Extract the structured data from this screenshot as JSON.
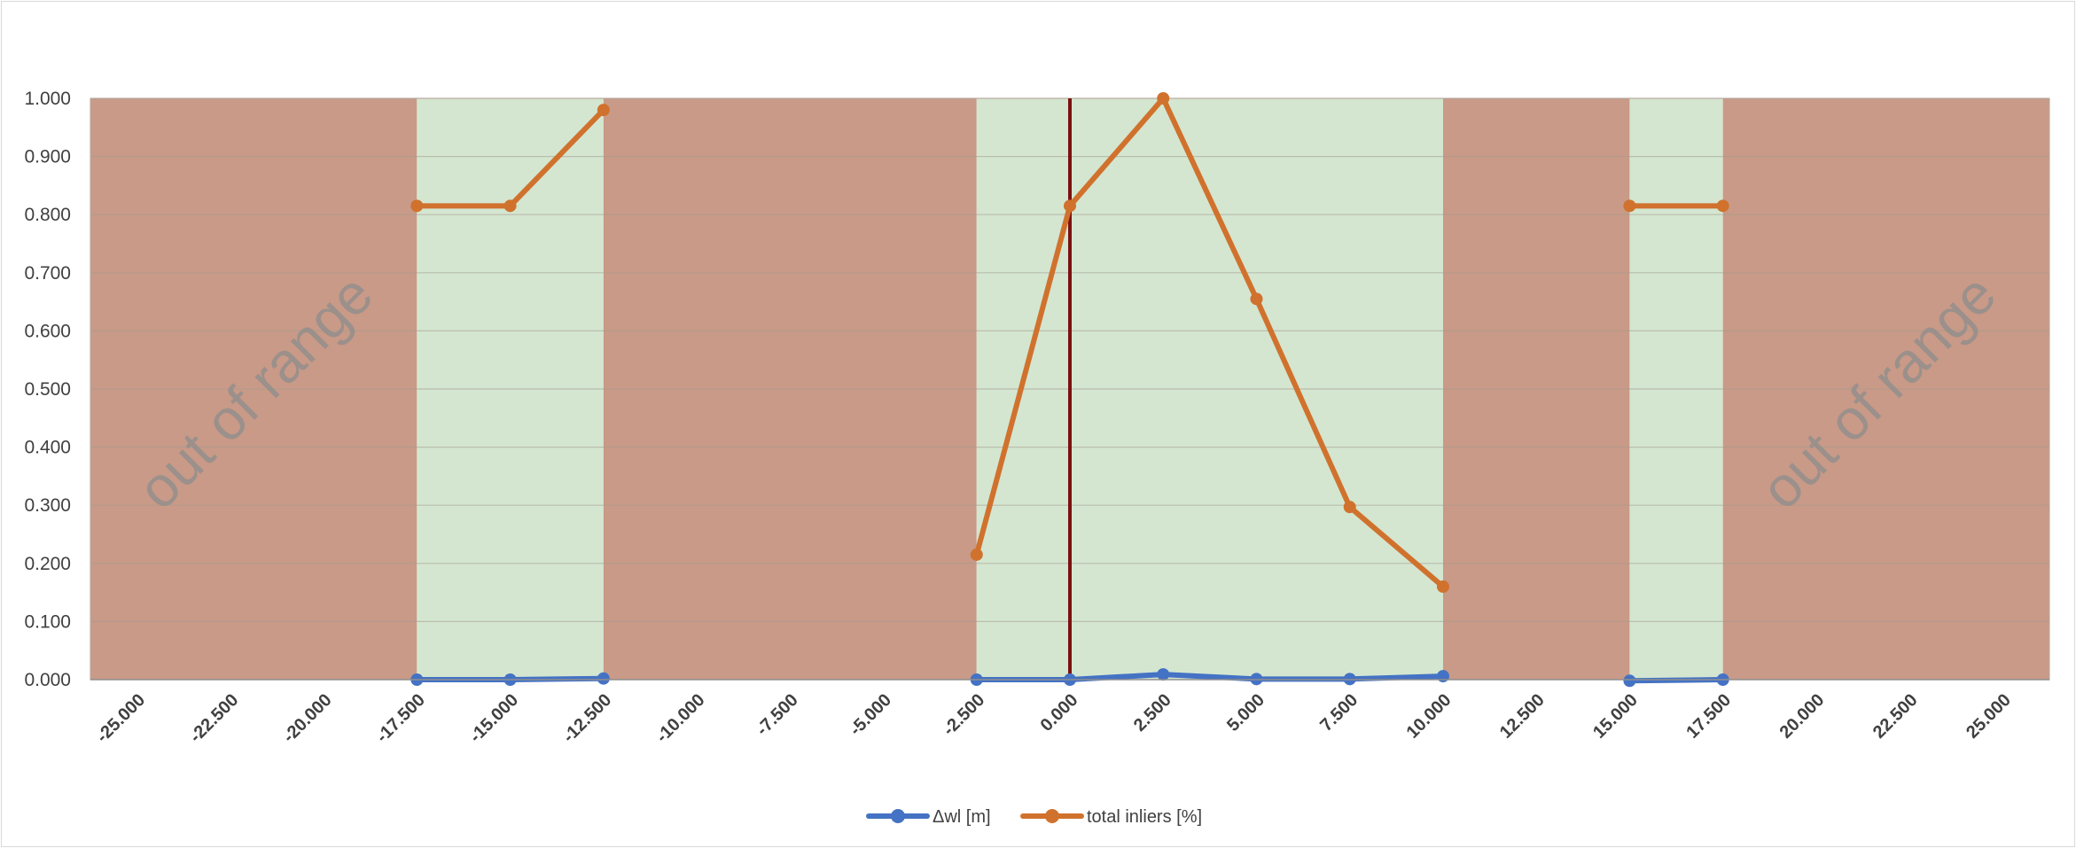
{
  "chart_data": {
    "type": "line",
    "xlim": [
      -26.25,
      26.25
    ],
    "ylim": [
      0,
      1
    ],
    "x_ticks": [
      "-25.000",
      "-22.500",
      "-20.000",
      "-17.500",
      "-15.000",
      "-12.500",
      "-10.000",
      "-7.500",
      "-5.000",
      "-2.500",
      "0.000",
      "2.500",
      "5.000",
      "7.500",
      "10.000",
      "12.500",
      "15.000",
      "17.500",
      "20.000",
      "22.500",
      "25.000"
    ],
    "x_tick_values": [
      -25,
      -22.5,
      -20,
      -17.5,
      -15,
      -12.5,
      -10,
      -7.5,
      -5,
      -2.5,
      0,
      2.5,
      5,
      7.5,
      10,
      12.5,
      15,
      17.5,
      20,
      22.5,
      25
    ],
    "y_ticks": [
      "0.000",
      "0.100",
      "0.200",
      "0.300",
      "0.400",
      "0.500",
      "0.600",
      "0.700",
      "0.800",
      "0.900",
      "1.000"
    ],
    "y_tick_values": [
      0,
      0.1,
      0.2,
      0.3,
      0.4,
      0.5,
      0.6,
      0.7,
      0.8,
      0.9,
      1.0
    ],
    "grid": true,
    "legend_position": "bottom",
    "background_bands": [
      {
        "type": "out",
        "from": -26.25,
        "to": -17.5
      },
      {
        "type": "in",
        "from": -17.5,
        "to": -12.5
      },
      {
        "type": "out",
        "from": -12.5,
        "to": -2.5
      },
      {
        "type": "in",
        "from": -2.5,
        "to": 10
      },
      {
        "type": "out",
        "from": 10,
        "to": 15
      },
      {
        "type": "in",
        "from": 15,
        "to": 17.5
      },
      {
        "type": "out",
        "from": 17.5,
        "to": 26.25
      }
    ],
    "band_colors": {
      "out": "#c89a87",
      "in": "#d4e6d0"
    },
    "reference_line": {
      "x": 0,
      "color": "#7b1111"
    },
    "annotations": [
      {
        "text": "out of range",
        "x": -21.75,
        "y": 0.49
      },
      {
        "text": "out of range",
        "x": 21.75,
        "y": 0.49
      }
    ],
    "series": [
      {
        "name": "Δwl [m]",
        "color": "#4472c4",
        "segments": [
          [
            [
              -17.5,
              0.0
            ],
            [
              -15,
              0.0
            ],
            [
              -12.5,
              0.002
            ]
          ],
          [
            [
              -2.5,
              0.0
            ],
            [
              0,
              0.0
            ],
            [
              2.5,
              0.009
            ],
            [
              5,
              0.001
            ],
            [
              7.5,
              0.001
            ],
            [
              10,
              0.006
            ]
          ],
          [
            [
              15,
              -0.002
            ],
            [
              17.5,
              0.0
            ]
          ]
        ]
      },
      {
        "name": "total inliers [%]",
        "color": "#d0722d",
        "segments": [
          [
            [
              -17.5,
              0.815
            ],
            [
              -15,
              0.815
            ],
            [
              -12.5,
              0.98
            ]
          ],
          [
            [
              -2.5,
              0.215
            ],
            [
              0,
              0.815
            ],
            [
              2.5,
              1.0
            ],
            [
              5,
              0.655
            ],
            [
              7.5,
              0.297
            ],
            [
              10,
              0.16
            ]
          ],
          [
            [
              15,
              0.815
            ],
            [
              17.5,
              0.815
            ]
          ]
        ]
      }
    ]
  }
}
